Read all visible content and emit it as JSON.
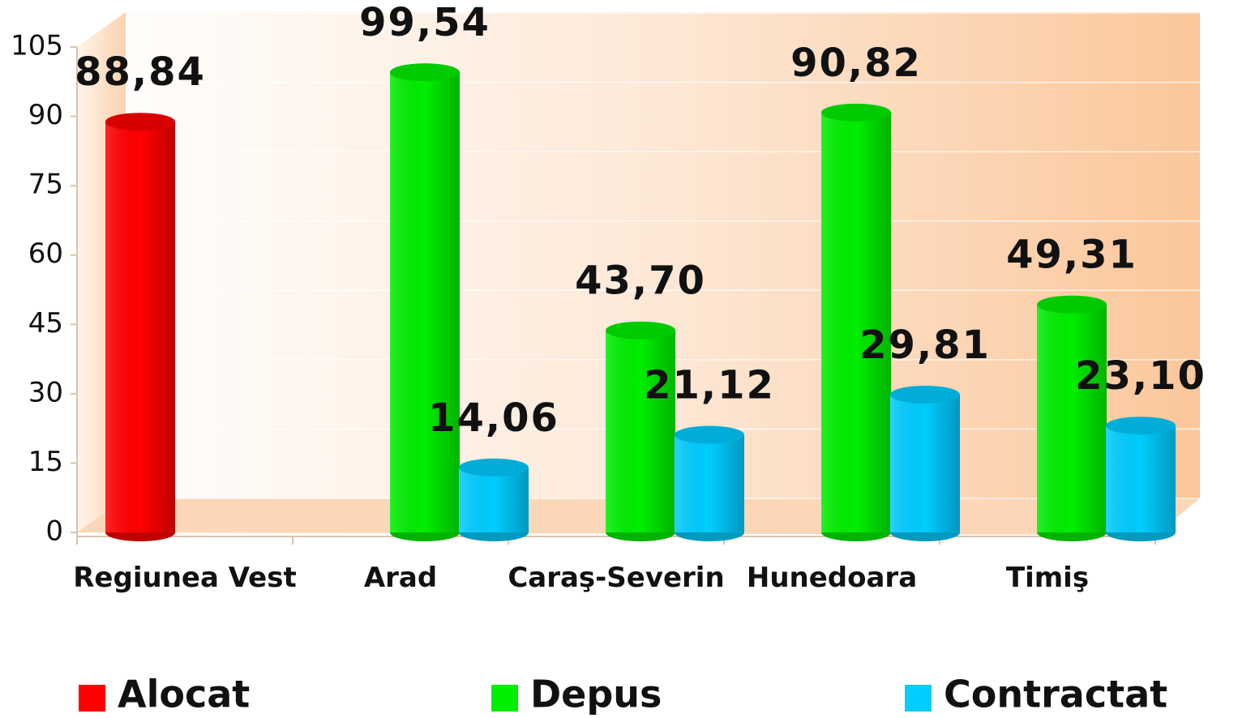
{
  "chart_data": {
    "type": "bar",
    "categories": [
      "Regiunea Vest",
      "Arad",
      "Caraş-Severin",
      "Hunedoara",
      "Timiş"
    ],
    "series": [
      {
        "name": "Alocat",
        "color": "#ff0000",
        "values": [
          88.84,
          null,
          null,
          null,
          null
        ],
        "value_labels": [
          "88,84",
          null,
          null,
          null,
          null
        ]
      },
      {
        "name": "Depus",
        "color": "#00ee00",
        "values": [
          null,
          99.54,
          43.7,
          90.82,
          49.31
        ],
        "value_labels": [
          null,
          "99,54",
          "43,70",
          "90,82",
          "49,31"
        ]
      },
      {
        "name": "Contractat",
        "color": "#00ccff",
        "values": [
          null,
          14.06,
          21.12,
          29.81,
          23.1
        ],
        "value_labels": [
          null,
          "14,06",
          "21,12",
          "29,81",
          "23,10"
        ]
      }
    ],
    "ylim": [
      0,
      105
    ],
    "yticks": [
      0,
      15,
      30,
      45,
      60,
      75,
      90,
      105
    ],
    "grid": true,
    "legend": "bottom"
  }
}
